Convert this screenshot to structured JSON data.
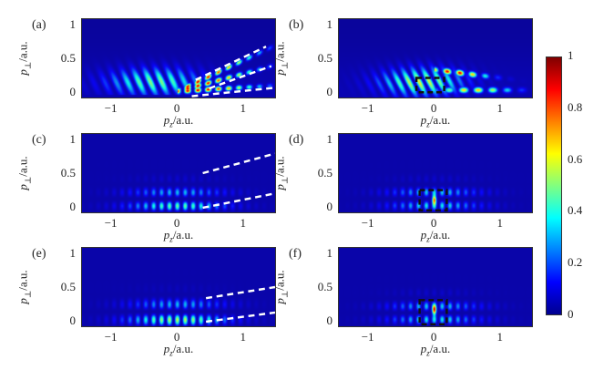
{
  "chart_data": {
    "type": "heatmap",
    "panels": [
      {
        "label": "(a)",
        "xlim": [
          -1.45,
          1.5
        ],
        "ylim": [
          -0.1,
          1.1
        ],
        "xticks": [
          {
            "v": -1,
            "t": "−1"
          },
          {
            "v": 0,
            "t": "0"
          },
          {
            "v": 1,
            "t": "1"
          }
        ],
        "yticks": [
          {
            "v": 0,
            "t": "0"
          },
          {
            "v": 0.5,
            "t": "0.5"
          },
          {
            "v": 1,
            "t": "1"
          }
        ],
        "white_dashed_lines": [
          [
            [
              0.29,
              0.17
            ],
            [
              1.38,
              0.68
            ]
          ],
          [
            [
              0.5,
              0.04
            ],
            [
              1.46,
              0.38
            ]
          ],
          [
            [
              0.23,
              -0.08
            ],
            [
              1.52,
              0.05
            ]
          ]
        ],
        "black_dashed_boxes": []
      },
      {
        "label": "(b)",
        "xlim": [
          -1.45,
          1.5
        ],
        "ylim": [
          -0.1,
          1.1
        ],
        "xticks": [
          {
            "v": -1,
            "t": "−1"
          },
          {
            "v": 0,
            "t": "0"
          },
          {
            "v": 1,
            "t": "1"
          }
        ],
        "yticks": [
          {
            "v": 0,
            "t": "0"
          },
          {
            "v": 0.5,
            "t": "0.5"
          },
          {
            "v": 1,
            "t": "1"
          }
        ],
        "white_dashed_lines": [],
        "black_dashed_boxes": [
          [
            -0.27,
            -0.02,
            0.16,
            0.2
          ]
        ]
      },
      {
        "label": "(c)",
        "xlim": [
          -1.45,
          1.5
        ],
        "ylim": [
          -0.1,
          1.1
        ],
        "xticks": [
          {
            "v": -1,
            "t": "−1"
          },
          {
            "v": 0,
            "t": "0"
          },
          {
            "v": 1,
            "t": "1"
          }
        ],
        "yticks": [
          {
            "v": 0,
            "t": "0"
          },
          {
            "v": 0.5,
            "t": "0.5"
          },
          {
            "v": 1,
            "t": "1"
          }
        ],
        "white_dashed_lines": [
          [
            [
              0.4,
              0.5
            ],
            [
              1.52,
              0.8
            ]
          ],
          [
            [
              0.4,
              -0.03
            ],
            [
              1.52,
              0.19
            ]
          ]
        ],
        "black_dashed_boxes": []
      },
      {
        "label": "(d)",
        "xlim": [
          -1.45,
          1.5
        ],
        "ylim": [
          -0.1,
          1.1
        ],
        "xticks": [
          {
            "v": -1,
            "t": "−1"
          },
          {
            "v": 0,
            "t": "0"
          },
          {
            "v": 1,
            "t": "1"
          }
        ],
        "yticks": [
          {
            "v": 0,
            "t": "0"
          },
          {
            "v": 0.5,
            "t": "0.5"
          },
          {
            "v": 1,
            "t": "1"
          }
        ],
        "white_dashed_lines": [],
        "black_dashed_boxes": [
          [
            -0.22,
            -0.07,
            0.2,
            0.24
          ]
        ]
      },
      {
        "label": "(e)",
        "xlim": [
          -1.45,
          1.5
        ],
        "ylim": [
          -0.1,
          1.1
        ],
        "xticks": [
          {
            "v": -1,
            "t": "−1"
          },
          {
            "v": 0,
            "t": "0"
          },
          {
            "v": 1,
            "t": "1"
          }
        ],
        "yticks": [
          {
            "v": 0,
            "t": "0"
          },
          {
            "v": 0.5,
            "t": "0.5"
          },
          {
            "v": 1,
            "t": "1"
          }
        ],
        "white_dashed_lines": [
          [
            [
              0.45,
              0.33
            ],
            [
              1.52,
              0.5
            ]
          ],
          [
            [
              0.45,
              -0.03
            ],
            [
              1.52,
              0.11
            ]
          ]
        ],
        "black_dashed_boxes": []
      },
      {
        "label": "(f)",
        "xlim": [
          -1.45,
          1.5
        ],
        "ylim": [
          -0.1,
          1.1
        ],
        "xticks": [
          {
            "v": -1,
            "t": "−1"
          },
          {
            "v": 0,
            "t": "0"
          },
          {
            "v": 1,
            "t": "1"
          }
        ],
        "yticks": [
          {
            "v": 0,
            "t": "0"
          },
          {
            "v": 0.5,
            "t": "0.5"
          },
          {
            "v": 1,
            "t": "1"
          }
        ],
        "white_dashed_lines": [],
        "black_dashed_boxes": [
          [
            -0.22,
            -0.07,
            0.2,
            0.3
          ]
        ]
      }
    ],
    "xlabel": {
      "p": "p",
      "sub": "z",
      "unit": "/a.u."
    },
    "ylabel": {
      "p": "p",
      "sub": "⊥",
      "unit": "/a.u."
    },
    "colorbar": {
      "colormap": "jet",
      "range": [
        0,
        1
      ],
      "ticks": [
        {
          "v": 0,
          "t": "0"
        },
        {
          "v": 0.2,
          "t": "0.2"
        },
        {
          "v": 0.4,
          "t": "0.4"
        },
        {
          "v": 0.6,
          "t": "0.6"
        },
        {
          "v": 0.8,
          "t": "0.8"
        },
        {
          "v": 1,
          "t": "1"
        }
      ]
    }
  }
}
